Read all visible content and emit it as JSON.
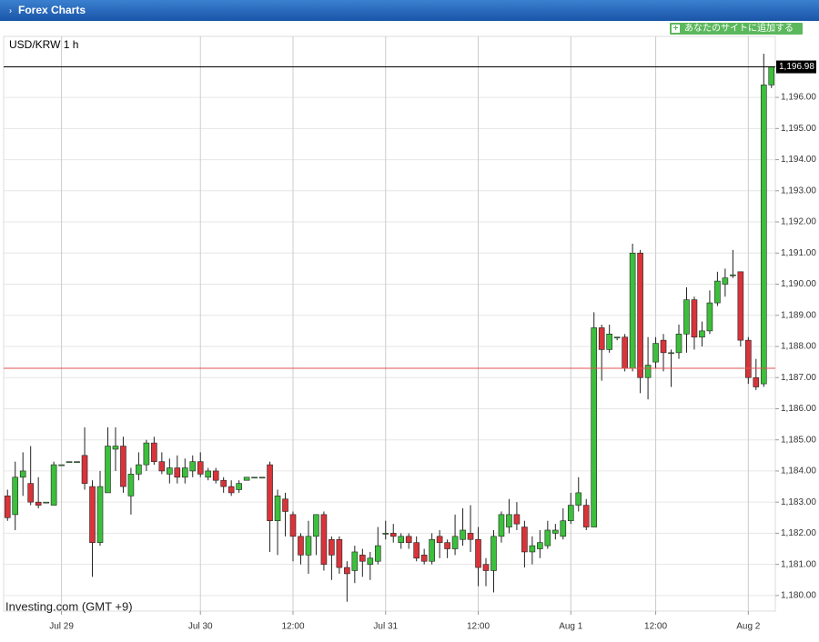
{
  "header": {
    "title": "Forex Charts",
    "button": "あなたのサイトに追加する"
  },
  "chart_data": {
    "type": "candlestick",
    "title": "USD/KRW 1 h",
    "watermark": "Investing.com (GMT +9)",
    "categories": [
      null,
      null,
      null,
      null,
      null,
      null,
      null,
      "Jul 29",
      null,
      null,
      null,
      null,
      null,
      null,
      null,
      null,
      null,
      null,
      null,
      null,
      null,
      null,
      null,
      null,
      null,
      "Jul 30",
      null,
      null,
      null,
      null,
      null,
      null,
      null,
      null,
      null,
      null,
      null,
      "12:00",
      null,
      null,
      null,
      null,
      null,
      null,
      null,
      null,
      null,
      null,
      null,
      "Jul 31",
      null,
      null,
      null,
      null,
      null,
      null,
      null,
      null,
      null,
      null,
      null,
      "12:00",
      null,
      null,
      null,
      null,
      null,
      null,
      null,
      null,
      null,
      null,
      null,
      "Aug 1",
      null,
      null,
      null,
      null,
      null,
      null,
      null,
      null,
      null,
      null,
      "12:00",
      null,
      null,
      null,
      null,
      null,
      null,
      null,
      null,
      null,
      null,
      null,
      "Aug 2",
      null,
      null,
      null
    ],
    "open": [
      1183.2,
      1182.6,
      1183.8,
      1183.6,
      1183.0,
      1183.0,
      1182.9,
      1184.2,
      1184.3,
      1184.3,
      1184.5,
      1183.5,
      1181.7,
      1183.3,
      1184.7,
      1184.8,
      1183.2,
      1183.9,
      1184.2,
      1184.9,
      1184.3,
      1183.9,
      1184.1,
      1183.8,
      1184.0,
      1184.3,
      1183.8,
      1184.0,
      1183.7,
      1183.5,
      1183.4,
      1183.7,
      1183.8,
      1183.8,
      1184.2,
      1182.4,
      1183.1,
      1182.6,
      1181.9,
      1181.3,
      1181.9,
      1182.6,
      1181.8,
      1181.8,
      1180.9,
      1180.8,
      1181.3,
      1181.0,
      1181.1,
      1182.0,
      1182.0,
      1181.7,
      1181.9,
      1181.7,
      1181.3,
      1181.1,
      1181.9,
      1181.7,
      1181.5,
      1181.8,
      1182.0,
      1181.8,
      1181.0,
      1180.8,
      1181.9,
      1182.2,
      1182.6,
      1182.2,
      1181.4,
      1181.5,
      1181.6,
      1182.0,
      1181.9,
      1182.4,
      1182.9,
      1182.9,
      1182.2,
      1188.6,
      1187.9,
      1188.3,
      1188.3,
      1187.3,
      1191.0,
      1187.0,
      1187.5,
      1188.2,
      1187.8,
      1187.8,
      1188.4,
      1189.5,
      1188.3,
      1188.5,
      1189.4,
      1190.0,
      1190.3,
      1190.4,
      1188.2,
      1187.0,
      1186.8,
      1196.4
    ],
    "high": [
      1183.4,
      1184.3,
      1184.6,
      1184.8,
      1183.8,
      1183.0,
      1184.3,
      1184.2,
      1184.3,
      1184.3,
      1185.4,
      1183.7,
      1184.0,
      1185.4,
      1185.4,
      1185.1,
      1184.1,
      1184.6,
      1185.0,
      1185.1,
      1184.6,
      1184.4,
      1184.5,
      1184.4,
      1184.5,
      1184.6,
      1184.1,
      1184.1,
      1183.8,
      1183.7,
      1183.7,
      1183.8,
      1183.8,
      1183.8,
      1184.3,
      1183.4,
      1183.3,
      1182.7,
      1182.0,
      1182.4,
      1182.6,
      1182.7,
      1181.9,
      1181.9,
      1181.1,
      1181.6,
      1181.5,
      1181.4,
      1182.2,
      1182.4,
      1182.3,
      1182.0,
      1182.0,
      1181.9,
      1181.5,
      1182.0,
      1182.1,
      1181.8,
      1182.6,
      1182.8,
      1182.9,
      1182.2,
      1181.2,
      1182.1,
      1182.7,
      1183.1,
      1183.0,
      1182.4,
      1181.9,
      1182.1,
      1182.4,
      1182.3,
      1182.8,
      1183.3,
      1183.8,
      1183.1,
      1189.1,
      1188.7,
      1188.7,
      1188.3,
      1188.4,
      1191.3,
      1191.1,
      1188.3,
      1188.3,
      1188.4,
      1187.9,
      1188.7,
      1189.9,
      1189.6,
      1188.8,
      1189.8,
      1190.4,
      1190.5,
      1191.1,
      1190.4,
      1188.3,
      1187.6,
      1197.4,
      1197.0
    ],
    "low": [
      1182.4,
      1182.1,
      1183.2,
      1182.9,
      1182.8,
      1183.0,
      1182.9,
      1184.2,
      1184.3,
      1184.3,
      1183.4,
      1180.6,
      1181.6,
      1183.3,
      1184.0,
      1183.3,
      1182.6,
      1183.7,
      1184.0,
      1184.2,
      1183.9,
      1183.6,
      1183.6,
      1183.6,
      1183.8,
      1183.8,
      1183.7,
      1183.6,
      1183.3,
      1183.2,
      1183.3,
      1183.7,
      1183.8,
      1183.8,
      1181.4,
      1181.3,
      1181.9,
      1181.1,
      1181.0,
      1180.7,
      1181.3,
      1180.8,
      1180.5,
      1180.7,
      1179.8,
      1180.4,
      1180.6,
      1180.5,
      1181.0,
      1181.8,
      1181.7,
      1181.5,
      1181.5,
      1181.1,
      1181.0,
      1181.0,
      1181.2,
      1181.2,
      1181.3,
      1181.6,
      1181.4,
      1180.3,
      1180.3,
      1180.1,
      1181.7,
      1182.0,
      1182.1,
      1180.9,
      1181.0,
      1181.2,
      1181.5,
      1181.8,
      1181.8,
      1182.3,
      1182.7,
      1182.1,
      1182.2,
      1186.9,
      1187.8,
      1188.2,
      1187.2,
      1187.2,
      1186.5,
      1186.3,
      1187.3,
      1187.2,
      1186.7,
      1187.6,
      1187.8,
      1187.9,
      1188.0,
      1188.4,
      1189.3,
      1189.6,
      1190.2,
      1188.0,
      1186.8,
      1186.6,
      1186.7,
      1196.3
    ],
    "close": [
      1182.5,
      1183.8,
      1184.0,
      1183.0,
      1182.9,
      1183.0,
      1184.2,
      1184.2,
      1184.3,
      1184.3,
      1183.6,
      1181.7,
      1183.5,
      1184.8,
      1184.8,
      1183.5,
      1183.9,
      1184.2,
      1184.9,
      1184.3,
      1184.0,
      1184.1,
      1183.8,
      1184.1,
      1184.3,
      1183.9,
      1184.0,
      1183.7,
      1183.5,
      1183.3,
      1183.6,
      1183.8,
      1183.8,
      1183.8,
      1182.4,
      1183.2,
      1182.7,
      1181.9,
      1181.3,
      1181.9,
      1182.6,
      1181.0,
      1181.3,
      1180.9,
      1180.7,
      1181.4,
      1181.1,
      1181.2,
      1181.6,
      1182.0,
      1181.9,
      1181.9,
      1181.7,
      1181.2,
      1181.1,
      1181.8,
      1181.7,
      1181.5,
      1181.9,
      1182.1,
      1181.8,
      1180.9,
      1180.8,
      1181.9,
      1182.6,
      1182.6,
      1182.3,
      1181.4,
      1181.6,
      1181.7,
      1182.1,
      1182.1,
      1182.4,
      1182.9,
      1183.3,
      1182.2,
      1188.6,
      1187.9,
      1188.4,
      1188.3,
      1187.3,
      1191.0,
      1187.0,
      1187.4,
      1188.1,
      1187.8,
      1187.8,
      1188.4,
      1189.5,
      1188.3,
      1188.5,
      1189.4,
      1190.1,
      1190.2,
      1190.3,
      1188.2,
      1187.0,
      1186.7,
      1196.4,
      1196.98
    ],
    "up_color": "#3cbf3c",
    "down_color": "#d8343a",
    "last_price": {
      "value": 1196.98,
      "label": "1,196.98"
    },
    "reference_line": 1187.3,
    "reference_color": "#e05050",
    "ylim": [
      1179.5,
      1197.96
    ],
    "yticks": [
      {
        "value": 1180,
        "label": "1,180.00"
      },
      {
        "value": 1181,
        "label": "1,181.00"
      },
      {
        "value": 1182,
        "label": "1,182.00"
      },
      {
        "value": 1183,
        "label": "1,183.00"
      },
      {
        "value": 1184,
        "label": "1,184.00"
      },
      {
        "value": 1185,
        "label": "1,185.00"
      },
      {
        "value": 1186,
        "label": "1,186.00"
      },
      {
        "value": 1187,
        "label": "1,187.00"
      },
      {
        "value": 1188,
        "label": "1,188.00"
      },
      {
        "value": 1189,
        "label": "1,189.00"
      },
      {
        "value": 1190,
        "label": "1,190.00"
      },
      {
        "value": 1191,
        "label": "1,191.00"
      },
      {
        "value": 1192,
        "label": "1,192.00"
      },
      {
        "value": 1193,
        "label": "1,193.00"
      },
      {
        "value": 1194,
        "label": "1,194.00"
      },
      {
        "value": 1195,
        "label": "1,195.00"
      },
      {
        "value": 1196,
        "label": "1,196.00"
      }
    ],
    "grid": true
  }
}
